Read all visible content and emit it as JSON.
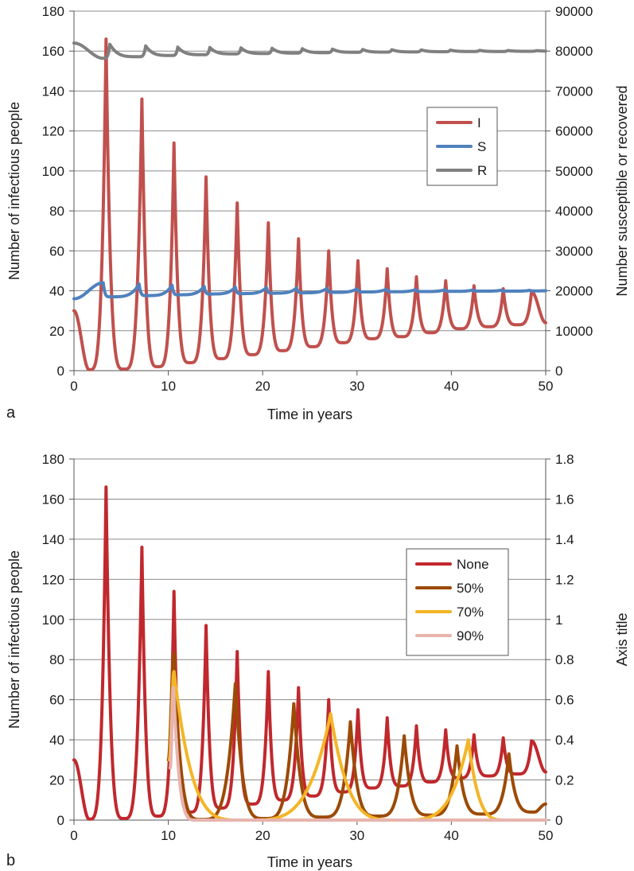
{
  "chart_data": [
    {
      "type": "line",
      "panel_label": "a",
      "title": "",
      "xlabel": "Time in years",
      "ylabel": "Number of infectious people",
      "y2label": "Number susceptible or recovered",
      "xlim": [
        0,
        50
      ],
      "ylim": [
        0,
        180
      ],
      "y2lim": [
        0,
        90000
      ],
      "xticks": [
        "0",
        "10",
        "20",
        "30",
        "40",
        "50"
      ],
      "yticks": [
        "0",
        "20",
        "40",
        "60",
        "80",
        "100",
        "120",
        "140",
        "160",
        "180"
      ],
      "y2ticks": [
        "0",
        "10000",
        "20000",
        "30000",
        "40000",
        "50000",
        "60000",
        "70000",
        "80000",
        "90000"
      ],
      "grid": "horizontal",
      "legend_position": "right",
      "series": [
        {
          "name": "I",
          "color": "#c0504d",
          "axis": "left",
          "start_value": 30,
          "peaks": [
            [
              3.4,
              166
            ],
            [
              7.2,
              136
            ],
            [
              10.6,
              114
            ],
            [
              14.0,
              97
            ],
            [
              17.3,
              84
            ],
            [
              20.6,
              74
            ],
            [
              23.8,
              66
            ],
            [
              27.0,
              60
            ],
            [
              30.1,
              55
            ],
            [
              33.2,
              51
            ],
            [
              36.3,
              47
            ],
            [
              39.4,
              45
            ],
            [
              42.4,
              42.5
            ],
            [
              45.5,
              41
            ],
            [
              48.5,
              39.5
            ]
          ],
          "troughs": [
            [
              1.6,
              0.5
            ],
            [
              5.3,
              0.8
            ],
            [
              8.9,
              2
            ],
            [
              12.3,
              4
            ],
            [
              15.6,
              6
            ],
            [
              18.9,
              8
            ],
            [
              22.1,
              10
            ],
            [
              25.3,
              12
            ],
            [
              28.5,
              14
            ],
            [
              31.6,
              16
            ],
            [
              34.7,
              17
            ],
            [
              37.8,
              19
            ],
            [
              40.9,
              21
            ],
            [
              44.0,
              22
            ],
            [
              47.0,
              23
            ]
          ],
          "end_value": 24
        },
        {
          "name": "S",
          "color": "#4f81bd",
          "axis": "right",
          "start_value": 18000,
          "peaks": [
            [
              3.1,
              22000
            ],
            [
              6.9,
              21700
            ],
            [
              10.4,
              21400
            ],
            [
              13.8,
              21100
            ],
            [
              17.1,
              20900
            ],
            [
              20.4,
              20800
            ],
            [
              23.6,
              20700
            ],
            [
              26.8,
              20600
            ],
            [
              30.0,
              20500
            ],
            [
              33.1,
              20400
            ],
            [
              36.2,
              20300
            ],
            [
              39.3,
              20250
            ],
            [
              42.3,
              20200
            ],
            [
              45.3,
              20150
            ],
            [
              48.3,
              20100
            ]
          ],
          "troughs": [
            [
              3.8,
              18500
            ],
            [
              7.6,
              18800
            ],
            [
              11.0,
              19000
            ],
            [
              14.4,
              19200
            ],
            [
              17.7,
              19300
            ],
            [
              21.0,
              19400
            ],
            [
              24.2,
              19500
            ],
            [
              27.4,
              19600
            ],
            [
              30.6,
              19700
            ],
            [
              33.7,
              19750
            ],
            [
              36.8,
              19800
            ],
            [
              39.9,
              19850
            ],
            [
              43.0,
              19900
            ],
            [
              46.0,
              19900
            ],
            [
              49.0,
              19950
            ]
          ],
          "end_value": 20000
        },
        {
          "name": "R",
          "color": "#808080",
          "axis": "right",
          "start_value": 82000,
          "peaks": [
            [
              3.8,
              81700
            ],
            [
              7.6,
              81300
            ],
            [
              11.0,
              81000
            ],
            [
              14.4,
              80900
            ],
            [
              17.7,
              80800
            ],
            [
              21.0,
              80700
            ],
            [
              24.2,
              80600
            ],
            [
              27.4,
              80500
            ],
            [
              30.6,
              80400
            ],
            [
              33.7,
              80350
            ],
            [
              36.8,
              80300
            ],
            [
              39.9,
              80250
            ],
            [
              43.0,
              80200
            ],
            [
              46.0,
              80150
            ],
            [
              49.0,
              80100
            ]
          ],
          "troughs": [
            [
              3.1,
              78200
            ],
            [
              6.9,
              78600
            ],
            [
              10.4,
              78900
            ],
            [
              13.8,
              79100
            ],
            [
              17.1,
              79300
            ],
            [
              20.4,
              79400
            ],
            [
              23.6,
              79500
            ],
            [
              26.8,
              79600
            ],
            [
              30.0,
              79700
            ],
            [
              33.1,
              79750
            ],
            [
              36.2,
              79800
            ],
            [
              39.3,
              79850
            ],
            [
              42.3,
              79900
            ],
            [
              45.3,
              79900
            ],
            [
              48.3,
              79950
            ]
          ],
          "end_value": 80000
        }
      ]
    },
    {
      "type": "line",
      "panel_label": "b",
      "title": "",
      "xlabel": "Time in years",
      "ylabel": "Number of infectious people",
      "y2label": "Axis title",
      "xlim": [
        0,
        50
      ],
      "ylim": [
        0,
        180
      ],
      "y2lim": [
        0,
        1.8
      ],
      "xticks": [
        "0",
        "10",
        "20",
        "30",
        "40",
        "50"
      ],
      "yticks": [
        "0",
        "20",
        "40",
        "60",
        "80",
        "100",
        "120",
        "140",
        "160",
        "180"
      ],
      "y2ticks": [
        "0",
        "0.2",
        "0.4",
        "0.6",
        "0.8",
        "1",
        "1.2",
        "1.4",
        "1.6",
        "1.8"
      ],
      "grid": "horizontal",
      "legend_position": "right",
      "series": [
        {
          "name": "None",
          "color": "#c0282d",
          "axis": "left",
          "start_value": 30,
          "peaks": [
            [
              3.4,
              166
            ],
            [
              7.2,
              136
            ],
            [
              10.6,
              114
            ],
            [
              14.0,
              97
            ],
            [
              17.3,
              84
            ],
            [
              20.6,
              74
            ],
            [
              23.8,
              66
            ],
            [
              27.0,
              60
            ],
            [
              30.1,
              55
            ],
            [
              33.2,
              51
            ],
            [
              36.3,
              47
            ],
            [
              39.4,
              45
            ],
            [
              42.4,
              42.5
            ],
            [
              45.5,
              41
            ],
            [
              48.5,
              39.5
            ]
          ],
          "troughs": [
            [
              1.6,
              0.5
            ],
            [
              5.3,
              0.8
            ],
            [
              8.9,
              2
            ],
            [
              12.3,
              4
            ],
            [
              15.6,
              6
            ],
            [
              18.9,
              8
            ],
            [
              22.1,
              10
            ],
            [
              25.3,
              12
            ],
            [
              28.5,
              14
            ],
            [
              31.6,
              16
            ],
            [
              34.7,
              17
            ],
            [
              37.8,
              19
            ],
            [
              40.9,
              21
            ],
            [
              44.0,
              22
            ],
            [
              47.0,
              23
            ]
          ],
          "end_value": 24
        },
        {
          "name": "50%",
          "color": "#9c4a06",
          "axis": "left",
          "start_value": 30,
          "start_x": 10.0,
          "peaks": [
            [
              10.6,
              83
            ],
            [
              17.1,
              68
            ],
            [
              23.3,
              58
            ],
            [
              29.3,
              49
            ],
            [
              35.0,
              42
            ],
            [
              40.6,
              37
            ],
            [
              46.1,
              33
            ]
          ],
          "troughs": [
            [
              13.5,
              0.3
            ],
            [
              20.2,
              0.8
            ],
            [
              26.3,
              1.5
            ],
            [
              32.2,
              2
            ],
            [
              37.8,
              2.5
            ],
            [
              43.4,
              3
            ],
            [
              48.8,
              4
            ]
          ],
          "end_value": 8
        },
        {
          "name": "70%",
          "color": "#f4b526",
          "axis": "left",
          "start_value": 30,
          "start_x": 10.1,
          "peaks": [
            [
              10.6,
              74
            ],
            [
              27.2,
              53
            ],
            [
              41.8,
              40
            ]
          ],
          "troughs": [
            [
              18.0,
              0
            ],
            [
              34.5,
              0
            ],
            [
              46.0,
              0
            ]
          ],
          "end_value": 0
        },
        {
          "name": "90%",
          "color": "#e8b4ae",
          "axis": "left",
          "start_value": 26,
          "start_x": 10.2,
          "peaks": [
            [
              10.55,
              66
            ]
          ],
          "troughs": [
            [
              13.0,
              0
            ]
          ],
          "end_value": 0
        }
      ]
    }
  ]
}
